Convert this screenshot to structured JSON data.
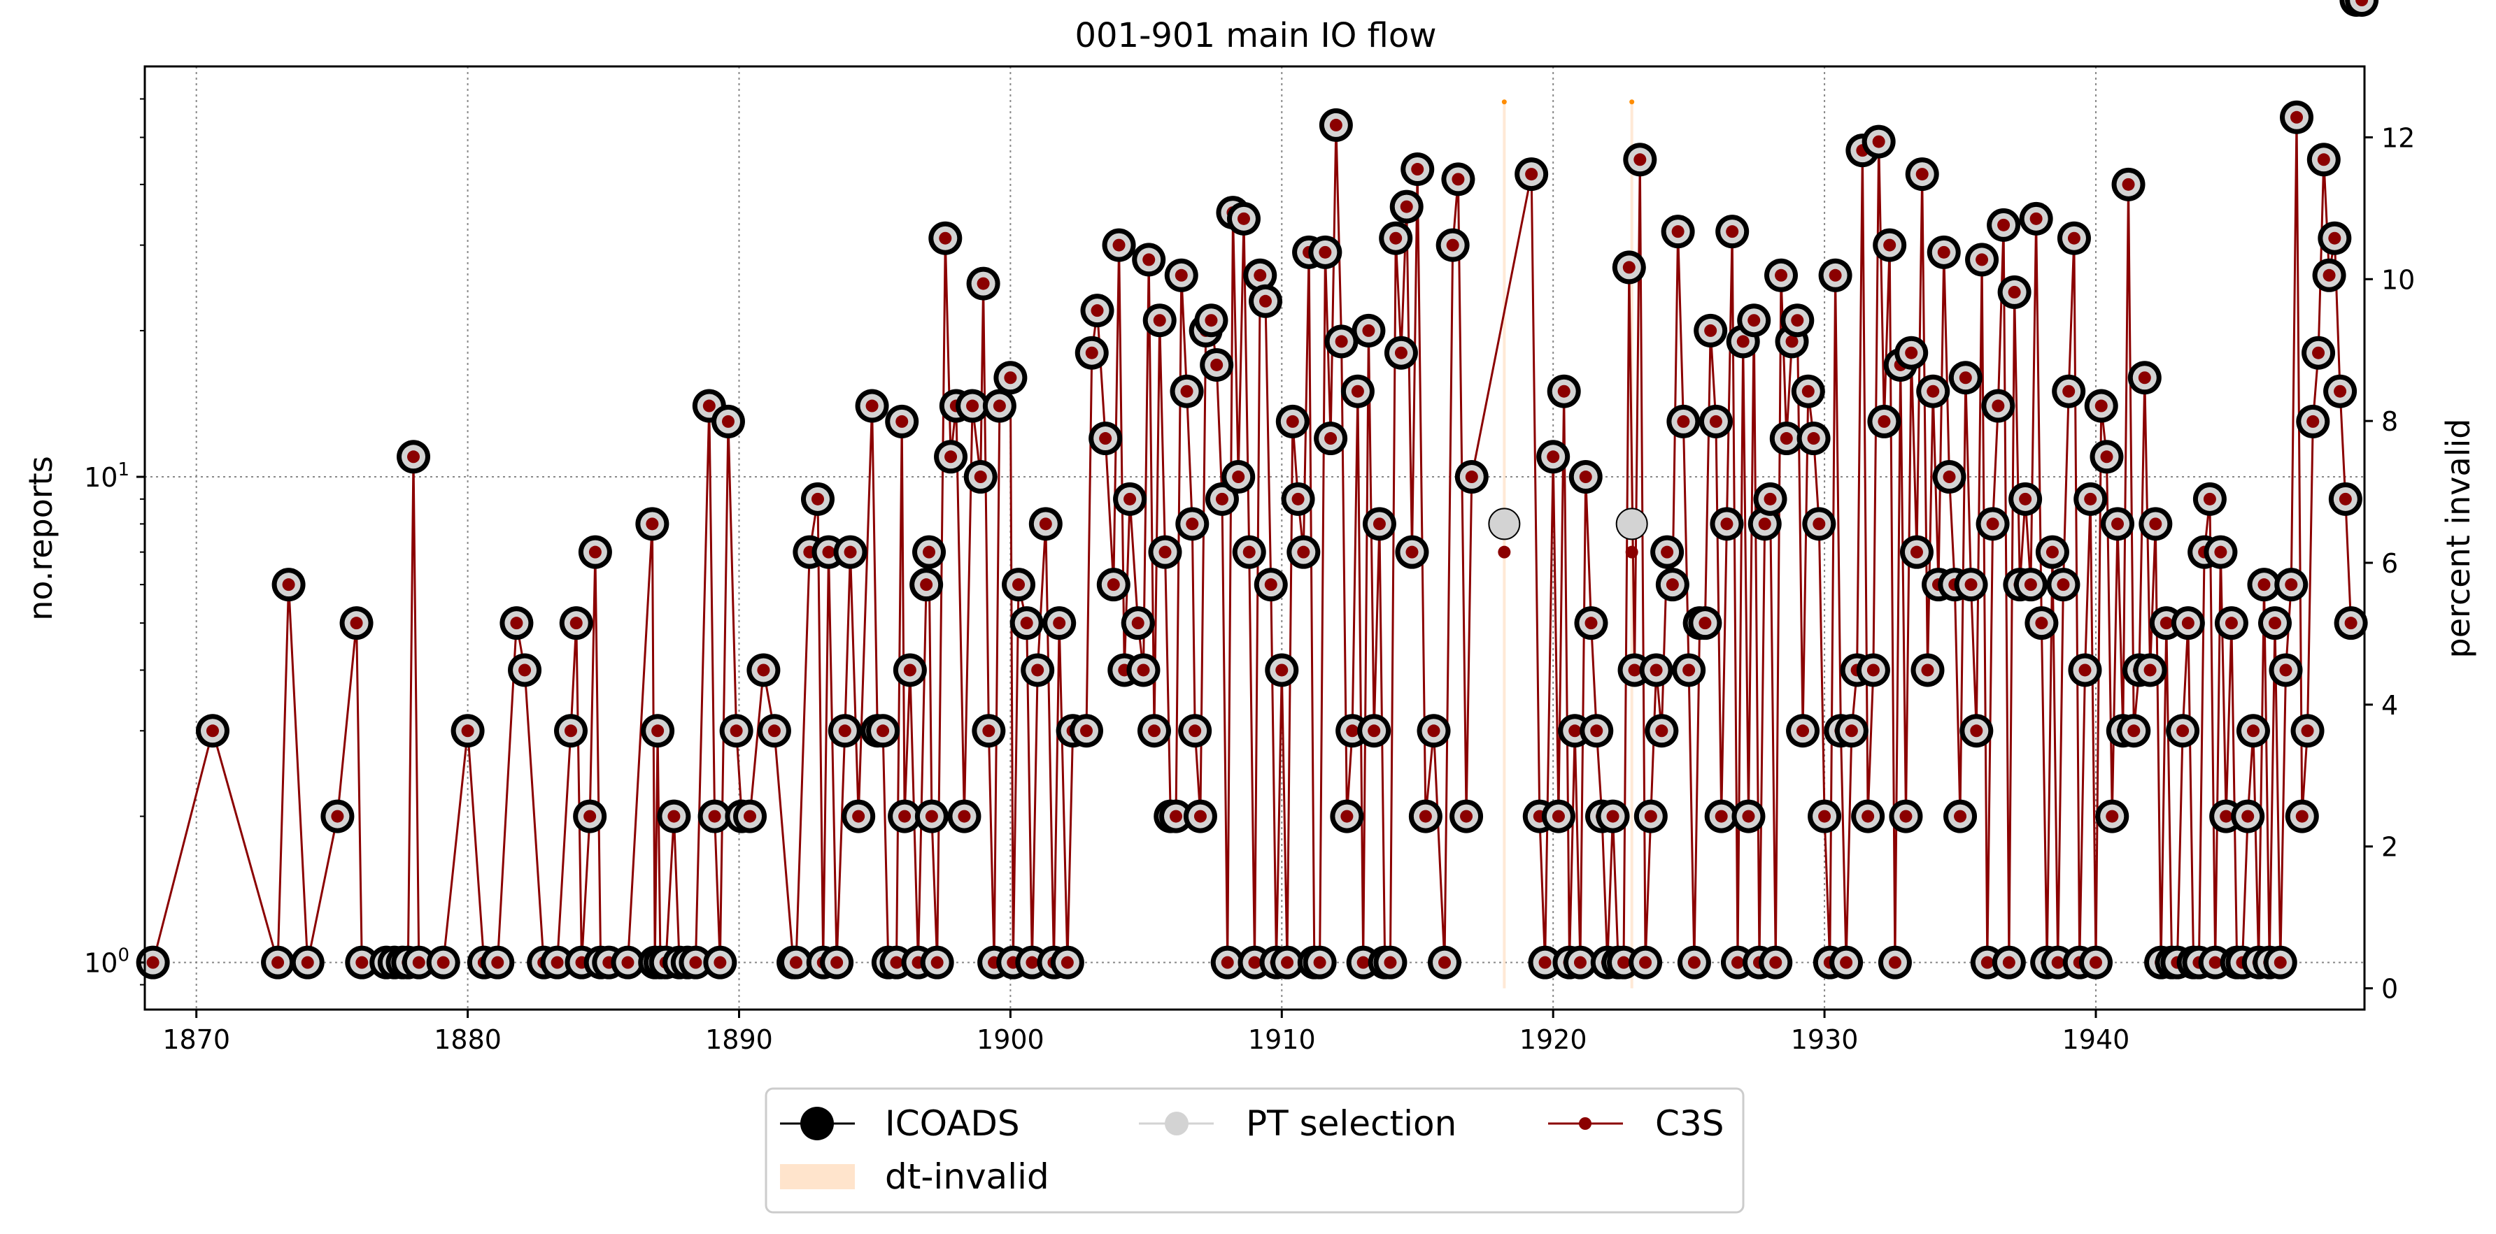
{
  "chart_data": {
    "type": "line",
    "title": "001-901 main IO flow",
    "ylabel": "no.reports",
    "y2label": "percent invalid",
    "xlim": [
      1868.1,
      1949.9
    ],
    "x_ticks": [
      "1870",
      "1880",
      "1890",
      "1900",
      "1910",
      "1920",
      "1930",
      "1940"
    ],
    "y_scale": "log",
    "ylim": [
      0.8,
      70
    ],
    "y_ticks": [
      {
        "value": 1,
        "base": "10",
        "exp": "0"
      },
      {
        "value": 10,
        "base": "10",
        "exp": "1"
      }
    ],
    "y2lim": [
      -0.3,
      13.0
    ],
    "y2_ticks": [
      "0",
      "2",
      "4",
      "6",
      "8",
      "10",
      "12"
    ],
    "grid": true,
    "legend_position": "below",
    "colors": {
      "icoads": "#000000",
      "pt_selection": "#d3d3d3",
      "c3s": "#8b0000",
      "dt_invalid": "#ffe4cc",
      "dt_invalid_marker": "#ff8c00"
    },
    "series": [
      {
        "name": "ICOADS",
        "style": "large black ring marker"
      },
      {
        "name": "PT selection",
        "style": "light grey filled marker"
      },
      {
        "name": "C3S",
        "style": "dark red line with small dots"
      },
      {
        "name": "dt-invalid",
        "style": "light orange area, right axis"
      }
    ],
    "x": [
      1868.4,
      1870.6,
      1873.0,
      1873.4,
      1874.1,
      1875.2,
      1875.9,
      1876.1,
      1877.0,
      1877.3,
      1877.6,
      1877.8,
      1878.0,
      1878.2,
      1879.1,
      1880.0,
      1880.6,
      1881.1,
      1881.8,
      1882.1,
      1882.8,
      1883.3,
      1883.8,
      1884.0,
      1884.2,
      1884.5,
      1884.7,
      1884.9,
      1885.2,
      1885.9,
      1886.8,
      1886.9,
      1887.0,
      1887.1,
      1887.3,
      1887.6,
      1887.8,
      1888.1,
      1888.4,
      1888.9,
      1889.1,
      1889.3,
      1889.6,
      1889.9,
      1890.1,
      1890.4,
      1890.9,
      1891.3,
      1892.0,
      1892.1,
      1892.6,
      1892.9,
      1893.1,
      1893.3,
      1893.6,
      1893.9,
      1894.1,
      1894.4,
      1894.9,
      1895.1,
      1895.3,
      1895.5,
      1895.8,
      1896.0,
      1896.1,
      1896.3,
      1896.6,
      1896.9,
      1897.0,
      1897.1,
      1897.3,
      1897.6,
      1897.8,
      1898.0,
      1898.3,
      1898.6,
      1898.9,
      1899.0,
      1899.2,
      1899.4,
      1899.6,
      1900.0,
      1900.1,
      1900.3,
      1900.6,
      1900.8,
      1901.0,
      1901.3,
      1901.6,
      1901.8,
      1902.1,
      1902.3,
      1902.8,
      1903.0,
      1903.2,
      1903.5,
      1903.8,
      1904.0,
      1904.2,
      1904.4,
      1904.7,
      1904.9,
      1905.1,
      1905.3,
      1905.5,
      1905.7,
      1905.9,
      1906.1,
      1906.3,
      1906.5,
      1906.7,
      1906.8,
      1907.0,
      1907.2,
      1907.4,
      1907.6,
      1907.8,
      1908.0,
      1908.2,
      1908.4,
      1908.6,
      1908.8,
      1909.0,
      1909.2,
      1909.4,
      1909.6,
      1909.8,
      1910.0,
      1910.2,
      1910.4,
      1910.6,
      1910.8,
      1911.0,
      1911.2,
      1911.4,
      1911.6,
      1911.8,
      1912.0,
      1912.2,
      1912.4,
      1912.6,
      1912.8,
      1913.0,
      1913.2,
      1913.4,
      1913.6,
      1913.8,
      1914.0,
      1914.2,
      1914.4,
      1914.6,
      1914.8,
      1915.0,
      1915.3,
      1915.6,
      1916.0,
      1916.3,
      1916.5,
      1916.8,
      1917.0,
      1919.2,
      1919.5,
      1919.7,
      1920.0,
      1920.2,
      1920.4,
      1920.6,
      1920.8,
      1921.0,
      1921.2,
      1921.4,
      1921.6,
      1921.8,
      1922.0,
      1922.2,
      1922.4,
      1922.6,
      1922.8,
      1923.0,
      1923.2,
      1923.4,
      1923.6,
      1923.8,
      1924.0,
      1924.2,
      1924.4,
      1924.6,
      1924.8,
      1925.0,
      1925.2,
      1925.4,
      1925.6,
      1925.8,
      1926.0,
      1926.2,
      1926.4,
      1926.6,
      1926.8,
      1927.0,
      1927.2,
      1927.4,
      1927.6,
      1927.8,
      1928.0,
      1928.2,
      1928.4,
      1928.6,
      1928.8,
      1929.0,
      1929.2,
      1929.4,
      1929.6,
      1929.8,
      1930.0,
      1930.2,
      1930.4,
      1930.6,
      1930.8,
      1931.0,
      1931.2,
      1931.4,
      1931.6,
      1931.8,
      1932.0,
      1932.2,
      1932.4,
      1932.6,
      1932.8,
      1933.0,
      1933.2,
      1933.4,
      1933.6,
      1933.8,
      1934.0,
      1934.2,
      1934.4,
      1934.6,
      1934.8,
      1935.0,
      1935.2,
      1935.4,
      1935.6,
      1935.8,
      1936.0,
      1936.2,
      1936.4,
      1936.6,
      1936.8,
      1937.0,
      1937.2,
      1937.4,
      1937.6,
      1937.8,
      1938.0,
      1938.2,
      1938.4,
      1938.6,
      1938.8,
      1939.0,
      1939.2,
      1939.4,
      1939.6,
      1939.8,
      1940.0,
      1940.2,
      1940.4,
      1940.6,
      1940.8,
      1941.0,
      1941.2,
      1941.4,
      1941.6,
      1941.8,
      1942.0,
      1942.2,
      1942.4,
      1942.6,
      1942.8,
      1943.0,
      1943.2,
      1943.4,
      1943.6,
      1943.8,
      1944.0,
      1944.2,
      1944.4,
      1944.6,
      1944.8,
      1945.0,
      1945.2,
      1945.4,
      1945.6,
      1945.8,
      1946.0,
      1946.2,
      1946.4,
      1946.6,
      1946.8,
      1947.0,
      1947.2,
      1947.4,
      1947.6,
      1947.8,
      1948.0,
      1948.2,
      1948.4,
      1948.6,
      1948.8,
      1949.0,
      1949.2,
      1949.4,
      1949.6,
      1949.8
    ],
    "icoads": [
      1,
      3,
      1,
      6,
      1,
      2,
      5,
      1,
      1,
      1,
      1,
      1,
      11,
      1,
      1,
      3,
      1,
      1,
      5,
      4,
      1,
      1,
      3,
      5,
      1,
      2,
      7,
      1,
      1,
      1,
      8,
      1,
      3,
      1,
      1,
      2,
      1,
      1,
      1,
      14,
      2,
      1,
      13,
      3,
      2,
      2,
      4,
      3,
      1,
      1,
      7,
      9,
      1,
      7,
      1,
      3,
      7,
      2,
      14,
      3,
      3,
      1,
      1,
      13,
      2,
      4,
      1,
      6,
      7,
      2,
      1,
      31,
      11,
      14,
      2,
      14,
      10,
      25,
      3,
      1,
      14,
      16,
      1,
      6,
      5,
      1,
      4,
      8,
      1,
      5,
      1,
      3,
      3,
      18,
      22,
      12,
      6,
      30,
      4,
      9,
      5,
      4,
      28,
      3,
      21,
      7,
      2,
      2,
      26,
      15,
      8,
      3,
      2,
      20,
      21,
      17,
      9,
      1,
      35,
      10,
      34,
      7,
      1,
      26,
      23,
      6,
      1,
      4,
      1,
      13,
      9,
      7,
      29,
      1,
      1,
      29,
      12,
      53,
      19,
      2,
      3,
      15,
      1,
      20,
      3,
      8,
      1,
      1,
      31,
      18,
      36,
      7,
      43,
      2,
      3,
      1,
      30,
      41,
      2,
      10,
      42,
      2,
      1,
      11,
      2,
      15,
      1,
      3,
      1,
      10,
      5,
      3,
      2,
      1,
      2,
      1,
      1,
      27,
      4,
      45,
      1,
      2,
      4,
      3,
      7,
      6,
      32,
      13,
      4,
      1,
      5,
      5,
      20,
      13,
      2,
      8,
      32,
      1,
      19,
      2,
      21,
      1,
      8,
      9,
      1,
      26,
      12,
      19,
      21,
      3,
      15,
      12,
      8,
      2,
      1,
      26,
      3,
      1,
      3,
      4,
      47,
      2,
      4,
      49,
      13,
      30,
      1,
      17,
      2,
      18,
      7,
      42,
      4,
      15,
      6,
      29,
      10,
      6,
      2,
      16,
      6,
      3,
      28,
      1,
      8,
      14,
      33,
      1,
      24,
      6,
      9,
      6,
      34,
      5,
      1,
      7,
      1,
      6,
      15,
      31,
      1,
      4,
      9,
      1,
      14,
      11,
      2,
      8,
      3,
      40,
      3,
      4,
      16,
      4,
      8,
      1,
      5,
      1,
      1,
      3,
      5,
      1,
      1,
      7,
      9,
      1,
      7,
      2,
      5,
      1,
      1,
      2,
      3,
      1,
      6,
      1,
      5,
      1,
      4,
      6,
      55,
      2,
      3,
      13,
      18,
      45,
      26,
      31,
      15,
      9,
      5
    ],
    "pt_selection": [
      1,
      3,
      1,
      6,
      1,
      2,
      5,
      1,
      1,
      1,
      1,
      1,
      11,
      1,
      1,
      3,
      1,
      1,
      5,
      4,
      1,
      1,
      3,
      5,
      1,
      2,
      7,
      1,
      1,
      1,
      8,
      1,
      3,
      1,
      1,
      2,
      1,
      1,
      1,
      14,
      2,
      1,
      13,
      3,
      2,
      2,
      4,
      3,
      1,
      1,
      7,
      9,
      1,
      7,
      1,
      3,
      7,
      2,
      14,
      3,
      3,
      1,
      1,
      13,
      2,
      4,
      1,
      6,
      7,
      2,
      1,
      31,
      11,
      14,
      2,
      14,
      10,
      25,
      3,
      1,
      14,
      16,
      1,
      6,
      5,
      1,
      4,
      8,
      1,
      5,
      1,
      3,
      3,
      18,
      22,
      12,
      6,
      30,
      4,
      9,
      5,
      4,
      28,
      3,
      21,
      7,
      2,
      2,
      26,
      15,
      8,
      3,
      2,
      20,
      21,
      17,
      9,
      1,
      35,
      10,
      34,
      7,
      1,
      26,
      23,
      6,
      1,
      4,
      1,
      13,
      9,
      7,
      29,
      1,
      1,
      29,
      12,
      53,
      19,
      2,
      3,
      15,
      1,
      20,
      3,
      8,
      1,
      1,
      31,
      18,
      36,
      7,
      43,
      2,
      3,
      1,
      30,
      41,
      2,
      10,
      42,
      2,
      1,
      11,
      2,
      15,
      1,
      3,
      1,
      10,
      5,
      3,
      2,
      1,
      2,
      1,
      1,
      27,
      4,
      45,
      1,
      2,
      4,
      3,
      7,
      6,
      32,
      13,
      4,
      1,
      5,
      5,
      20,
      13,
      2,
      8,
      32,
      1,
      19,
      2,
      21,
      1,
      8,
      9,
      1,
      26,
      12,
      19,
      21,
      3,
      15,
      12,
      8,
      2,
      1,
      26,
      3,
      1,
      3,
      4,
      47,
      2,
      4,
      49,
      13,
      30,
      1,
      17,
      2,
      18,
      7,
      42,
      4,
      15,
      6,
      29,
      10,
      6,
      2,
      16,
      6,
      3,
      28,
      1,
      8,
      14,
      33,
      1,
      24,
      6,
      9,
      6,
      34,
      5,
      1,
      7,
      1,
      6,
      15,
      31,
      1,
      4,
      9,
      1,
      14,
      11,
      2,
      8,
      3,
      40,
      3,
      4,
      16,
      4,
      8,
      1,
      5,
      1,
      1,
      3,
      5,
      1,
      1,
      7,
      9,
      1,
      7,
      2,
      5,
      1,
      1,
      2,
      3,
      1,
      6,
      1,
      5,
      1,
      4,
      6,
      55,
      2,
      3,
      13,
      18,
      45,
      26,
      31,
      15,
      9,
      5
    ],
    "c3s": [
      1,
      3,
      1,
      6,
      1,
      2,
      5,
      1,
      1,
      1,
      1,
      1,
      11,
      1,
      1,
      3,
      1,
      1,
      5,
      4,
      1,
      1,
      3,
      5,
      1,
      2,
      7,
      1,
      1,
      1,
      8,
      1,
      3,
      1,
      1,
      2,
      1,
      1,
      1,
      14,
      2,
      1,
      13,
      3,
      2,
      2,
      4,
      3,
      1,
      1,
      7,
      9,
      1,
      7,
      1,
      3,
      7,
      2,
      14,
      3,
      3,
      1,
      1,
      13,
      2,
      4,
      1,
      6,
      7,
      2,
      1,
      31,
      11,
      14,
      2,
      14,
      10,
      25,
      3,
      1,
      14,
      16,
      1,
      6,
      5,
      1,
      4,
      8,
      1,
      5,
      1,
      3,
      3,
      18,
      22,
      12,
      6,
      30,
      4,
      9,
      5,
      4,
      28,
      3,
      21,
      7,
      2,
      2,
      26,
      15,
      8,
      3,
      2,
      20,
      21,
      17,
      9,
      1,
      35,
      10,
      34,
      7,
      1,
      26,
      23,
      6,
      1,
      4,
      1,
      13,
      9,
      7,
      29,
      1,
      1,
      29,
      12,
      53,
      19,
      2,
      3,
      15,
      1,
      20,
      3,
      8,
      1,
      1,
      31,
      18,
      36,
      7,
      43,
      2,
      3,
      1,
      30,
      41,
      2,
      10,
      42,
      2,
      1,
      11,
      2,
      15,
      1,
      3,
      1,
      10,
      5,
      3,
      2,
      1,
      2,
      1,
      1,
      27,
      4,
      45,
      1,
      2,
      4,
      3,
      7,
      6,
      32,
      13,
      4,
      1,
      5,
      5,
      20,
      13,
      2,
      8,
      32,
      1,
      19,
      2,
      21,
      1,
      8,
      9,
      1,
      26,
      12,
      19,
      21,
      3,
      15,
      12,
      8,
      2,
      1,
      26,
      3,
      1,
      3,
      4,
      47,
      2,
      4,
      49,
      13,
      30,
      1,
      17,
      2,
      18,
      7,
      42,
      4,
      15,
      6,
      29,
      10,
      6,
      2,
      16,
      6,
      3,
      28,
      1,
      8,
      14,
      33,
      1,
      24,
      6,
      9,
      6,
      34,
      5,
      1,
      7,
      1,
      6,
      15,
      31,
      1,
      4,
      9,
      1,
      14,
      11,
      2,
      8,
      3,
      40,
      3,
      4,
      16,
      4,
      8,
      1,
      5,
      1,
      1,
      3,
      5,
      1,
      1,
      7,
      9,
      1,
      7,
      2,
      5,
      1,
      1,
      2,
      3,
      1,
      6,
      1,
      5,
      1,
      4,
      6,
      55,
      2,
      3,
      13,
      18,
      45,
      26,
      31,
      15,
      9,
      5
    ],
    "special_points": [
      {
        "x": 1918.2,
        "icoads": 8,
        "pt_selection": 8,
        "c3s": 7,
        "dt_invalid": 12.5
      },
      {
        "x": 1922.9,
        "icoads": 8,
        "pt_selection": 8,
        "c3s": 7,
        "dt_invalid": 12.5
      }
    ]
  },
  "legend": {
    "icoads": "ICOADS",
    "pt_selection": "PT selection",
    "c3s": "C3S",
    "dt_invalid": "dt-invalid"
  }
}
